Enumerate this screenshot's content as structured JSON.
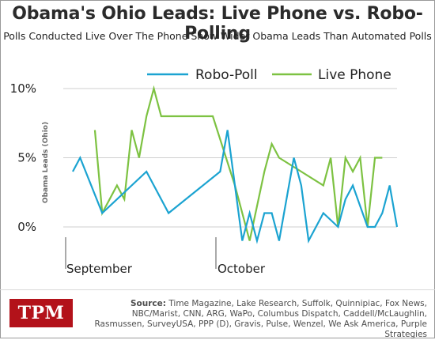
{
  "chart_data": {
    "type": "line",
    "title": "Obama's Ohio Leads: Live Phone vs. Robo-Polling",
    "subtitle": "Polls Conducted Live Over The Phone Show Wider Obama Leads Than Automated Polls",
    "ylabel": "Obama Leads (Ohio)",
    "xlabel": "",
    "ylim": [
      -1,
      11
    ],
    "yticks": [
      0,
      5,
      10
    ],
    "ytick_labels": [
      "0%",
      "5%",
      "10%"
    ],
    "x_label_months": [
      "September",
      "October"
    ],
    "grid": true,
    "legend": "top-right",
    "series": [
      {
        "name": "Robo-Poll",
        "color": "#1ba3d1",
        "x": [
          1,
          2,
          5,
          11,
          14,
          21,
          22,
          24,
          25,
          26,
          27,
          28,
          29,
          31,
          32,
          33,
          34,
          35,
          37,
          38,
          39,
          41,
          42,
          43,
          44,
          45
        ],
        "values": [
          4.0,
          5.0,
          1.0,
          4.0,
          1.0,
          4.0,
          7.0,
          -1.0,
          1.0,
          -1.0,
          1.0,
          1.0,
          -1.0,
          5.0,
          3.0,
          -1.0,
          0.0,
          1.0,
          0.0,
          2.0,
          3.0,
          0.0,
          0.0,
          1.0,
          3.0,
          0.0
        ]
      },
      {
        "name": "Live Phone",
        "color": "#7dc242",
        "x": [
          4,
          5,
          7,
          8,
          9,
          10,
          11,
          12,
          13,
          15,
          17,
          18,
          20,
          23,
          25,
          27,
          28,
          29,
          32,
          35,
          36,
          37,
          38,
          39,
          40,
          41,
          42,
          43
        ],
        "values": [
          7.0,
          1.0,
          3.0,
          2.0,
          7.0,
          5.0,
          8.0,
          10.0,
          8.0,
          8.0,
          8.0,
          8.0,
          8.0,
          3.0,
          -1.0,
          4.0,
          6.0,
          5.0,
          4.0,
          3.0,
          5.0,
          0.0,
          5.0,
          4.0,
          5.0,
          0.0,
          5.0,
          5.0
        ]
      }
    ]
  },
  "logo_text": "TPM",
  "source": {
    "label": "Source:",
    "text": "Time Magazine, Lake Research, Suffolk, Quinnipiac, Fox News, NBC/Marist, CNN, ARG, WaPo, Columbus Dispatch, Caddell/McLaughlin, Rasmussen, SurveyUSA, PPP (D), Gravis, Pulse, Wenzel, We Ask America, Purple Strategies"
  }
}
